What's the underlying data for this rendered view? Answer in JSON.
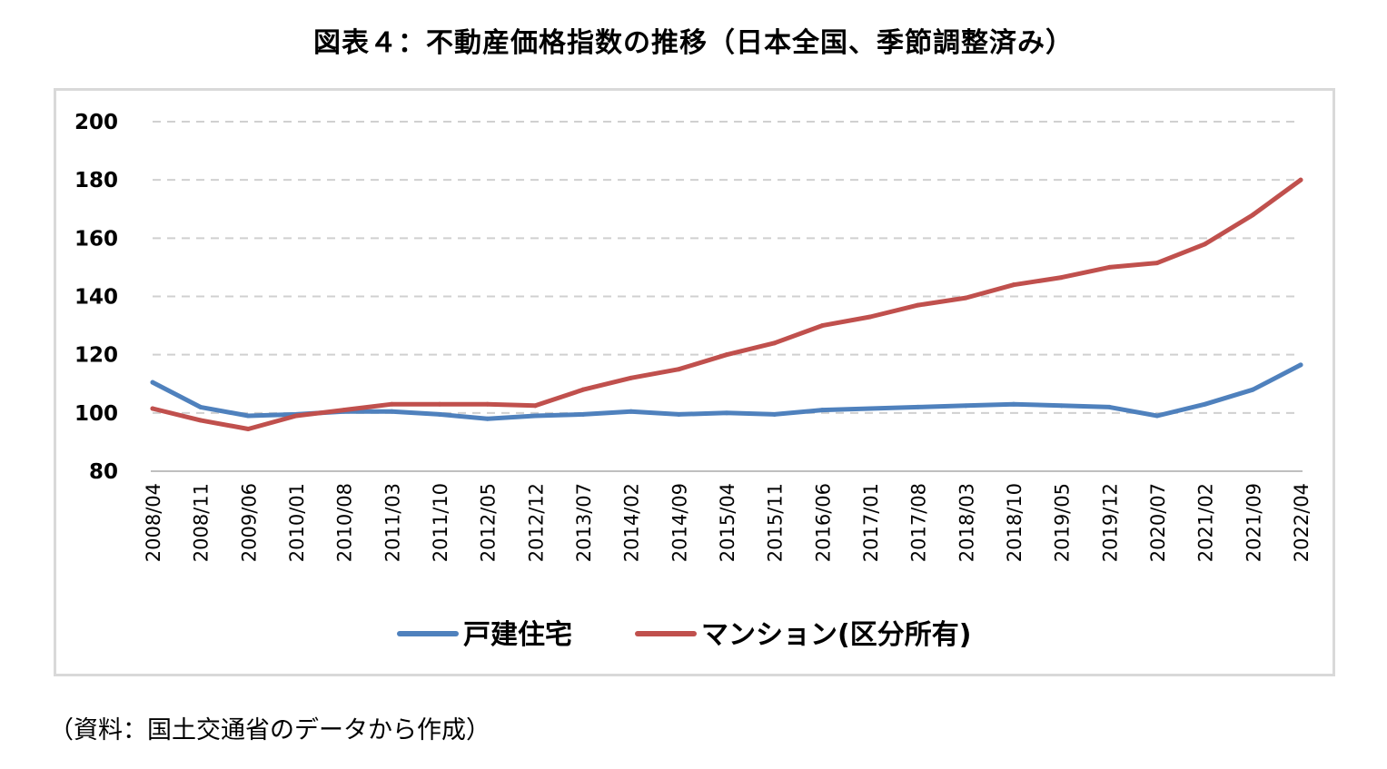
{
  "title": "図表４：不動産価格指数の推移（日本全国、季節調整済み）",
  "source": "（資料：国土交通省のデータから作成）",
  "chart_data": {
    "type": "line",
    "title": "図表４：不動産価格指数の推移（日本全国、季節調整済み）",
    "xlabel": "",
    "ylabel": "",
    "ylim": [
      80,
      200
    ],
    "yticks": [
      "80",
      "100",
      "120",
      "140",
      "160",
      "180",
      "200"
    ],
    "grid": "horizontal dashed",
    "legend_position": "bottom",
    "xticks": [
      "2008/04",
      "2008/11",
      "2009/06",
      "2010/01",
      "2010/08",
      "2011/03",
      "2011/10",
      "2012/05",
      "2012/12",
      "2013/07",
      "2014/02",
      "2014/09",
      "2015/04",
      "2015/11",
      "2016/06",
      "2017/01",
      "2017/08",
      "2018/03",
      "2018/10",
      "2019/05",
      "2019/12",
      "2020/07",
      "2021/02",
      "2021/09",
      "2022/04"
    ],
    "x": [
      "2008/04",
      "2008/11",
      "2009/06",
      "2010/01",
      "2010/08",
      "2011/03",
      "2011/10",
      "2012/05",
      "2012/12",
      "2013/07",
      "2014/02",
      "2014/09",
      "2015/04",
      "2015/11",
      "2016/06",
      "2017/01",
      "2017/08",
      "2018/03",
      "2018/10",
      "2019/05",
      "2019/12",
      "2020/07",
      "2021/02",
      "2021/09",
      "2022/04"
    ],
    "series": [
      {
        "name": "戸建住宅",
        "color": "#4f81bd",
        "values": [
          110.5,
          102,
          99,
          99.5,
          100.5,
          100.5,
          99.5,
          98,
          99,
          99.5,
          100.5,
          99.5,
          100,
          99.5,
          101,
          101.5,
          102,
          102.5,
          103,
          102.5,
          102,
          99,
          103,
          108,
          116.5
        ]
      },
      {
        "name": "マンション(区分所有)",
        "color": "#c0504d",
        "values": [
          101.5,
          97.5,
          94.5,
          99,
          101,
          103,
          103,
          103,
          102.5,
          108,
          112,
          115,
          120,
          124,
          130,
          133,
          137,
          139.5,
          144,
          146.5,
          150,
          151.5,
          158,
          168,
          180
        ]
      }
    ]
  }
}
